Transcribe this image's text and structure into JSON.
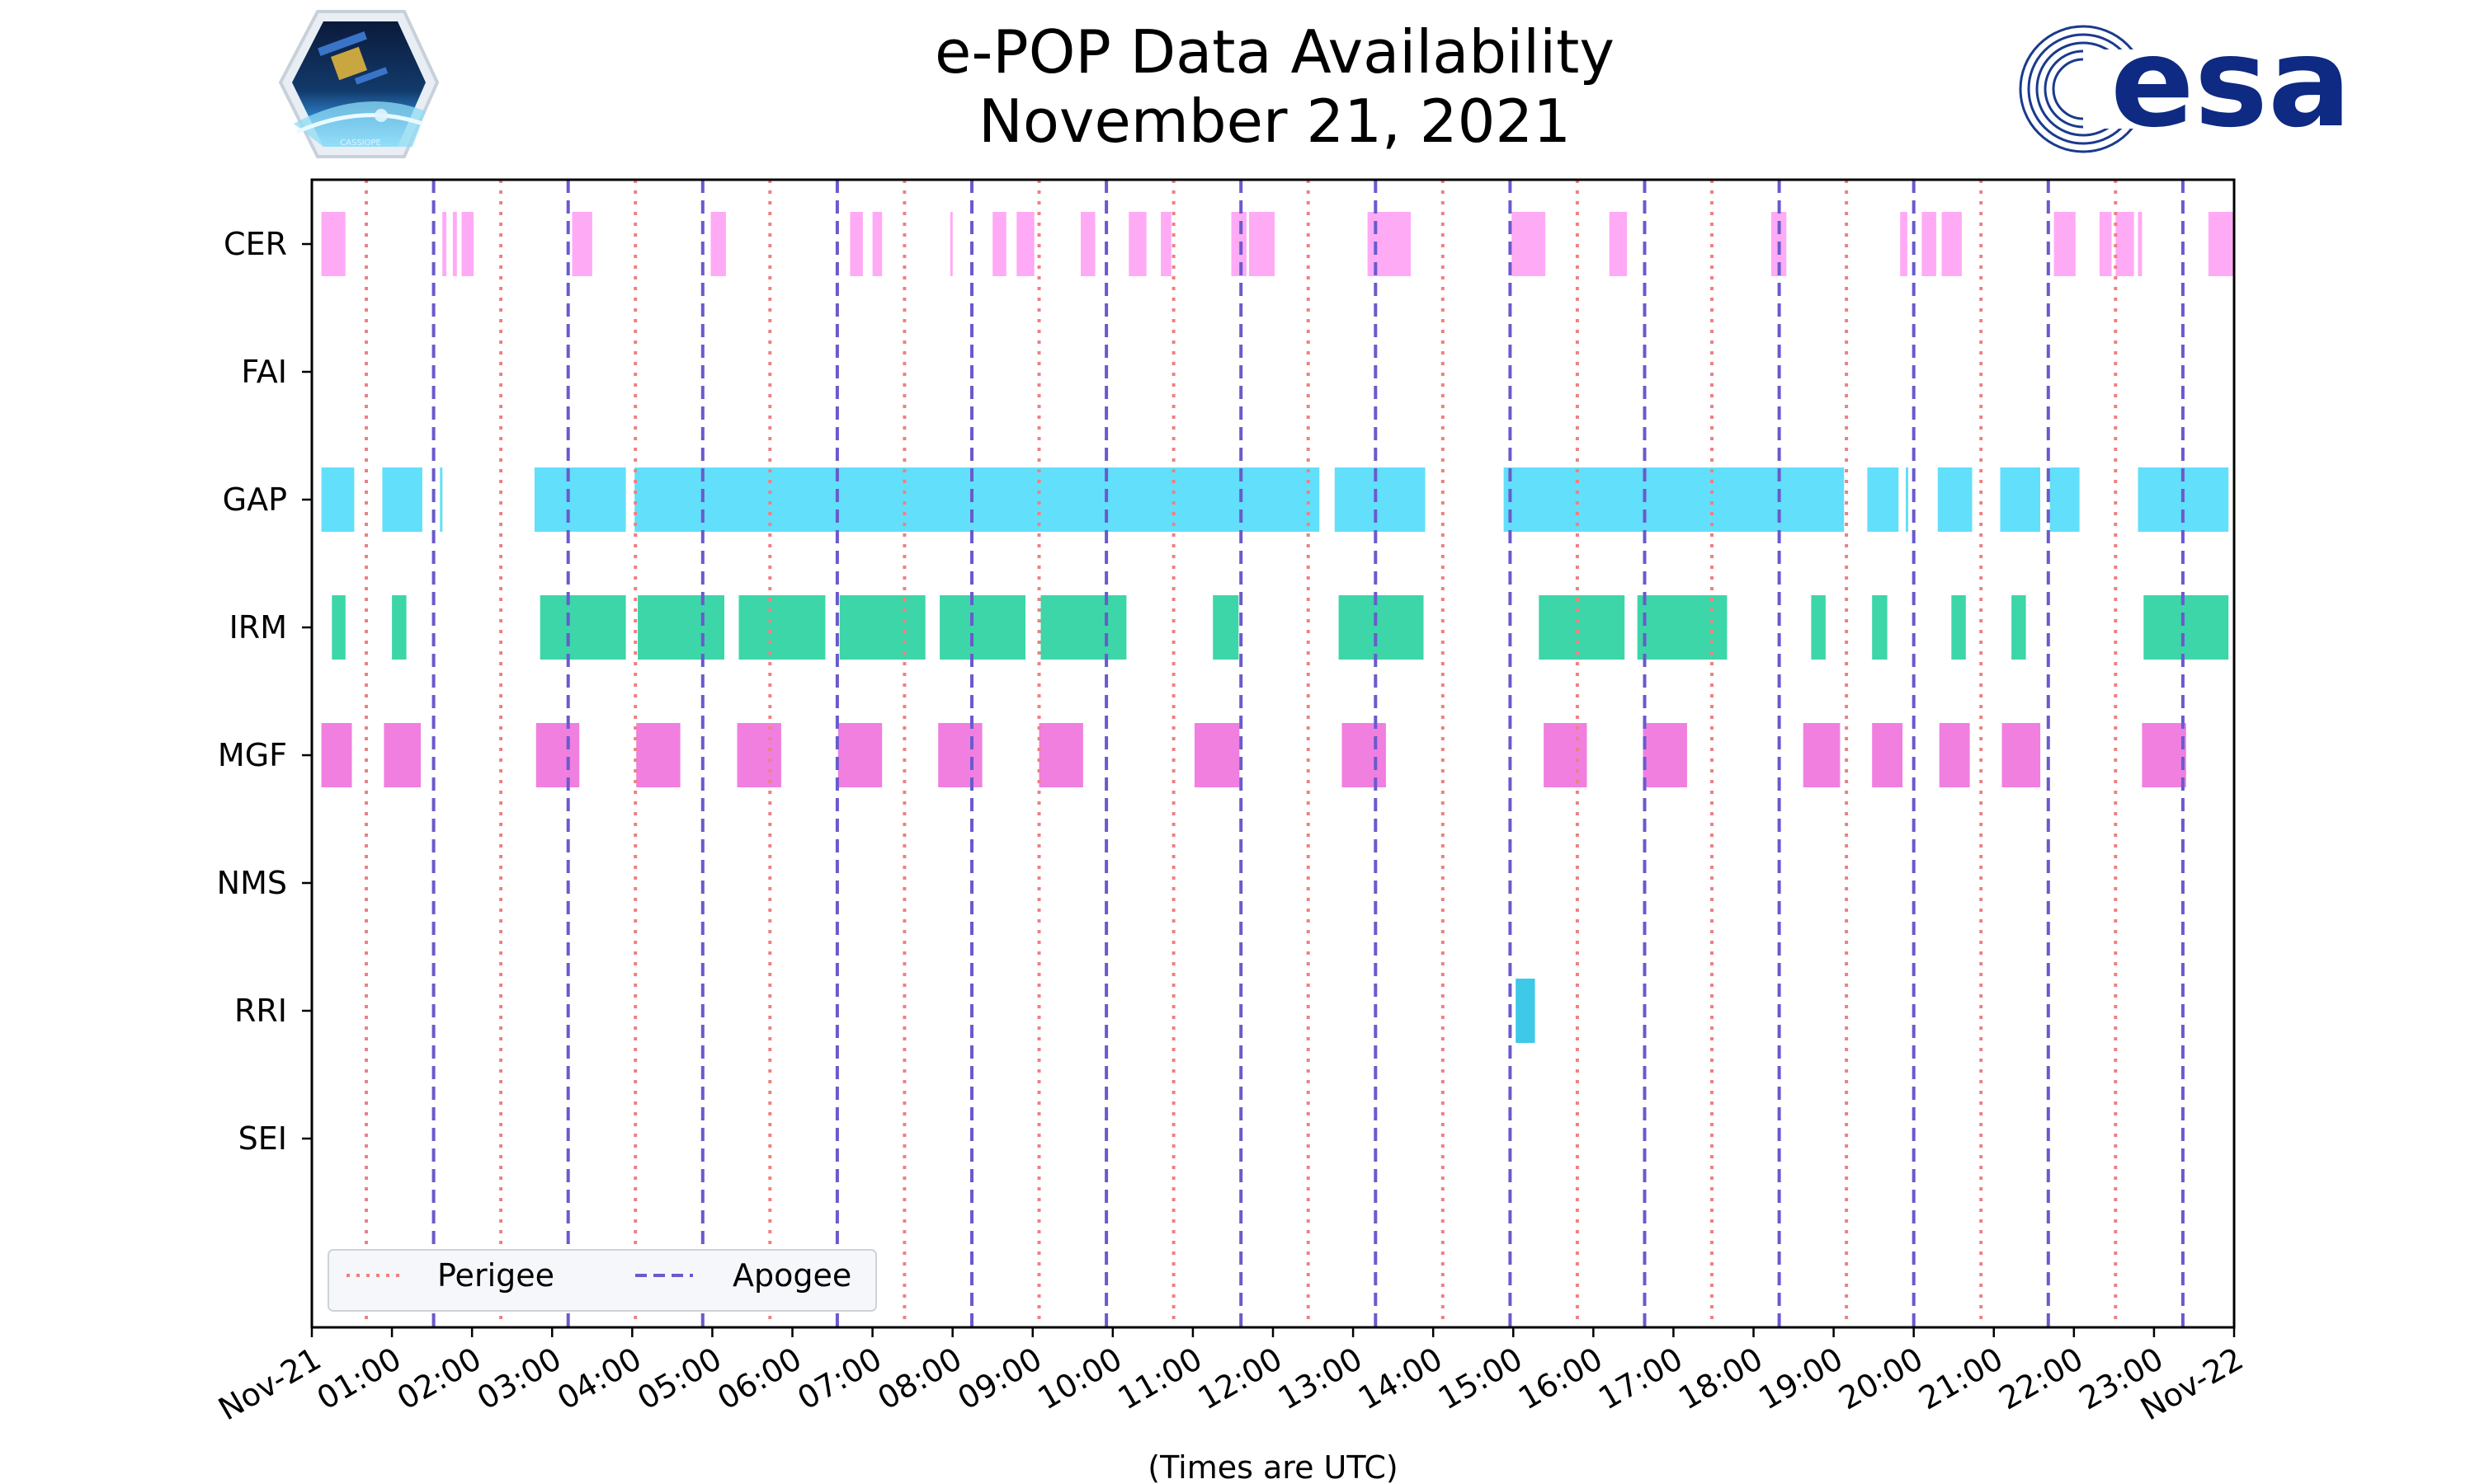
{
  "title": {
    "line1": "e-POP Data Availability",
    "line2": "November 21, 2021"
  },
  "logos": {
    "left_badge_text": "CASSIOPE",
    "right_logo_text": "esa"
  },
  "chart_data": {
    "type": "timeline",
    "title": "e-POP Data Availability November 21, 2021",
    "xlabel": "(Times are UTC)",
    "x_range_hours": [
      0,
      24
    ],
    "x_tick_labels": [
      "Nov-21",
      "01:00",
      "02:00",
      "03:00",
      "04:00",
      "05:00",
      "06:00",
      "07:00",
      "08:00",
      "09:00",
      "10:00",
      "11:00",
      "12:00",
      "13:00",
      "14:00",
      "15:00",
      "16:00",
      "17:00",
      "18:00",
      "19:00",
      "20:00",
      "21:00",
      "22:00",
      "23:00",
      "Nov-22"
    ],
    "instruments": [
      "CER",
      "FAI",
      "GAP",
      "IRM",
      "MGF",
      "NMS",
      "RRI",
      "SEI"
    ],
    "colors": {
      "CER": "#ffaaf5",
      "FAI": "#ff9966",
      "GAP": "#62dffa",
      "IRM": "#3cd6a8",
      "MGF": "#f07fe0",
      "NMS": "#aaaaaa",
      "RRI": "#3ec9e8",
      "SEI": "#cccccc",
      "perigee": "#f08080",
      "apogee": "#6a5acd"
    },
    "intervals": {
      "CER": [
        [
          0.12,
          0.42
        ],
        [
          1.63,
          1.68
        ],
        [
          1.76,
          1.81
        ],
        [
          1.87,
          2.02
        ],
        [
          3.25,
          3.5
        ],
        [
          4.98,
          5.17
        ],
        [
          6.72,
          6.88
        ],
        [
          7.0,
          7.12
        ],
        [
          7.97,
          8.0
        ],
        [
          8.5,
          8.67
        ],
        [
          8.8,
          9.02
        ],
        [
          9.6,
          9.78
        ],
        [
          10.2,
          10.42
        ],
        [
          10.6,
          10.73
        ],
        [
          11.48,
          11.67
        ],
        [
          11.7,
          12.02
        ],
        [
          13.18,
          13.72
        ],
        [
          14.98,
          15.4
        ],
        [
          16.2,
          16.42
        ],
        [
          18.22,
          18.41
        ],
        [
          19.83,
          19.92
        ],
        [
          20.1,
          20.28
        ],
        [
          20.35,
          20.6
        ],
        [
          21.75,
          22.02
        ],
        [
          22.32,
          22.47
        ],
        [
          22.52,
          22.75
        ],
        [
          22.8,
          22.85
        ],
        [
          23.68,
          24.0
        ]
      ],
      "FAI": [],
      "GAP": [
        [
          0.12,
          0.53
        ],
        [
          0.88,
          1.38
        ],
        [
          1.6,
          1.62
        ],
        [
          2.78,
          3.92
        ],
        [
          4.03,
          12.58
        ],
        [
          12.77,
          13.9
        ],
        [
          14.88,
          19.13
        ],
        [
          19.42,
          19.81
        ],
        [
          19.9,
          19.93
        ],
        [
          20.3,
          20.73
        ],
        [
          21.08,
          21.58
        ],
        [
          21.7,
          22.07
        ],
        [
          22.8,
          23.93
        ]
      ],
      "IRM": [
        [
          0.25,
          0.42
        ],
        [
          1.0,
          1.18
        ],
        [
          2.85,
          3.92
        ],
        [
          4.07,
          5.15
        ],
        [
          5.33,
          6.41
        ],
        [
          6.59,
          7.66
        ],
        [
          7.84,
          8.91
        ],
        [
          9.1,
          10.17
        ],
        [
          11.25,
          11.57
        ],
        [
          12.82,
          13.88
        ],
        [
          15.32,
          16.39
        ],
        [
          16.55,
          17.67
        ],
        [
          18.72,
          18.9
        ],
        [
          19.48,
          19.67
        ],
        [
          20.47,
          20.65
        ],
        [
          21.22,
          21.4
        ],
        [
          22.87,
          23.93
        ]
      ],
      "MGF": [
        [
          0.12,
          0.5
        ],
        [
          0.9,
          1.36
        ],
        [
          2.8,
          3.34
        ],
        [
          4.05,
          4.6
        ],
        [
          5.31,
          5.86
        ],
        [
          6.57,
          7.12
        ],
        [
          7.82,
          8.37
        ],
        [
          9.08,
          9.63
        ],
        [
          11.02,
          11.58
        ],
        [
          12.86,
          13.41
        ],
        [
          15.38,
          15.92
        ],
        [
          16.62,
          17.17
        ],
        [
          18.62,
          19.08
        ],
        [
          19.48,
          19.86
        ],
        [
          20.32,
          20.7
        ],
        [
          21.1,
          21.58
        ],
        [
          22.85,
          23.4
        ]
      ],
      "NMS": [],
      "RRI": [
        [
          15.03,
          15.27
        ]
      ],
      "SEI": []
    },
    "perigee_hours": [
      0.68,
      2.36,
      4.04,
      5.72,
      7.4,
      9.08,
      10.76,
      12.44,
      14.12,
      15.8,
      17.48,
      19.16,
      20.84,
      22.52
    ],
    "apogee_hours": [
      1.52,
      3.2,
      4.88,
      6.56,
      8.24,
      9.92,
      11.6,
      13.28,
      14.96,
      16.64,
      18.32,
      20.0,
      21.68,
      23.36
    ],
    "legend": {
      "placement": "lower-left",
      "entries": [
        {
          "label": "Perigee",
          "style": "dotted"
        },
        {
          "label": "Apogee",
          "style": "dashed"
        }
      ]
    }
  }
}
